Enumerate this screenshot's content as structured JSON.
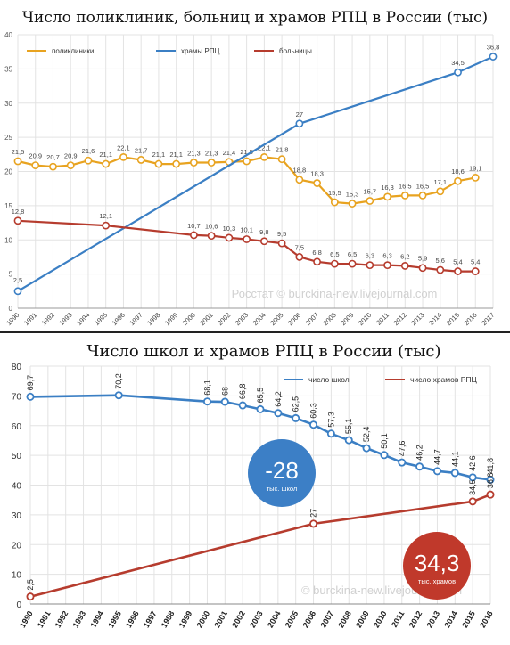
{
  "colors": {
    "clinics": "#e8a320",
    "churches": "#3b7fc4",
    "hospitals": "#b63c2e",
    "schools": "#3b7fc4",
    "churches2": "#b63c2e",
    "grid": "#e3e3e3"
  },
  "chart_data": [
    {
      "type": "line",
      "title": "Число поликлиник, больниц и храмов РПЦ в России (тыс)",
      "watermark": "Росстат © burckina-new.livejournal.com",
      "ylim": [
        0,
        40
      ],
      "yticks": [
        0,
        5,
        10,
        15,
        20,
        25,
        30,
        35,
        40
      ],
      "xlim": [
        1990,
        2017
      ],
      "xticks": [
        1990,
        1991,
        1992,
        1993,
        1994,
        1995,
        1996,
        1997,
        1998,
        1999,
        2000,
        2001,
        2002,
        2003,
        2004,
        2005,
        2006,
        2007,
        2008,
        2009,
        2010,
        2011,
        2012,
        2013,
        2014,
        2015,
        2016,
        2017
      ],
      "grid": true,
      "legend": "top",
      "series": [
        {
          "name": "поликлиники",
          "key": "clinics",
          "x": [
            1990,
            1991,
            1992,
            1993,
            1994,
            1995,
            1996,
            1997,
            1998,
            1999,
            2000,
            2001,
            2002,
            2003,
            2004,
            2005,
            2006,
            2007,
            2008,
            2009,
            2010,
            2011,
            2012,
            2013,
            2014,
            2015,
            2016
          ],
          "y": [
            21.5,
            20.9,
            20.7,
            20.9,
            21.6,
            21.1,
            22.1,
            21.7,
            21.1,
            21.1,
            21.3,
            21.3,
            21.4,
            21.5,
            22.1,
            21.8,
            18.8,
            18.3,
            15.5,
            15.3,
            15.7,
            16.3,
            16.5,
            16.5,
            17.1,
            18.6,
            19.1
          ],
          "labels": [
            "21,5",
            "20,9",
            "20,7",
            "20,9",
            "21,6",
            "21,1",
            "22,1",
            "21,7",
            "21,1",
            "21,1",
            "21,3",
            "21,3",
            "21,4",
            "21,5",
            "22,1",
            "21,8",
            "18,8",
            "18,3",
            "15,5",
            "15,3",
            "15,7",
            "16,3",
            "16,5",
            "16,5",
            "17,1",
            "18,6",
            "19,1"
          ]
        },
        {
          "name": "храмы РПЦ",
          "key": "churches",
          "x": [
            1990,
            2006,
            2015,
            2017
          ],
          "y": [
            2.5,
            27,
            34.5,
            36.8
          ],
          "labels": [
            "2,5",
            "27",
            "34,5",
            "36,8"
          ]
        },
        {
          "name": "больницы",
          "key": "hospitals",
          "x": [
            1990,
            1995,
            2000,
            2001,
            2002,
            2003,
            2004,
            2005,
            2006,
            2007,
            2008,
            2009,
            2010,
            2011,
            2012,
            2013,
            2014,
            2015,
            2016
          ],
          "y": [
            12.8,
            12.1,
            10.7,
            10.6,
            10.3,
            10.1,
            9.8,
            9.5,
            7.5,
            6.8,
            6.5,
            6.5,
            6.3,
            6.3,
            6.2,
            5.9,
            5.6,
            5.4,
            5.4
          ],
          "labels": [
            "12,8",
            "12,1",
            "10,7",
            "10,6",
            "10,3",
            "10,1",
            "9,8",
            "9,5",
            "7,5",
            "6,8",
            "6,5",
            "6,5",
            "6,3",
            "6,3",
            "6,2",
            "5,9",
            "5,6",
            "5,4",
            "5,4"
          ]
        }
      ]
    },
    {
      "type": "line",
      "title": "Число школ и храмов РПЦ в России (тыс)",
      "watermark": "© burckina-new.livejournal.com",
      "ylim": [
        0,
        80
      ],
      "yticks": [
        0,
        10,
        20,
        30,
        40,
        50,
        60,
        70,
        80
      ],
      "xlim": [
        1990,
        2016
      ],
      "xticks": [
        1990,
        1991,
        1992,
        1993,
        1994,
        1995,
        1996,
        1997,
        1998,
        1999,
        2000,
        2001,
        2002,
        2003,
        2004,
        2005,
        2006,
        2007,
        2008,
        2009,
        2010,
        2011,
        2012,
        2013,
        2014,
        2015,
        2016
      ],
      "grid": true,
      "legend": "top-right",
      "series": [
        {
          "name": "число школ",
          "key": "schools",
          "x": [
            1990,
            1995,
            2000,
            2001,
            2002,
            2003,
            2004,
            2005,
            2006,
            2007,
            2008,
            2009,
            2010,
            2011,
            2012,
            2013,
            2014,
            2015,
            2016
          ],
          "y": [
            69.7,
            70.2,
            68.1,
            68,
            66.8,
            65.5,
            64.2,
            62.5,
            60.3,
            57.3,
            55.1,
            52.4,
            50.1,
            47.6,
            46.2,
            44.7,
            44.1,
            42.6,
            41.8
          ],
          "labels": [
            "69,7",
            "70,2",
            "68,1",
            "68",
            "66,8",
            "65,5",
            "64,2",
            "62,5",
            "60,3",
            "57,3",
            "55,1",
            "52,4",
            "50,1",
            "47,6",
            "46,2",
            "44,7",
            "44,1",
            "42,6",
            "41,8"
          ]
        },
        {
          "name": "число храмов РПЦ",
          "key": "churches2",
          "x": [
            1990,
            2006,
            2015,
            2016
          ],
          "y": [
            2.5,
            27,
            34.5,
            36.8
          ],
          "labels": [
            "2,5",
            "27",
            "34,5",
            "36,8"
          ]
        }
      ],
      "annotations": [
        {
          "big": "-28",
          "small": "тыс. школ",
          "color": "#3c7fc6"
        },
        {
          "big": "34,3",
          "small": "тыс. храмов",
          "color": "#c0392b"
        }
      ]
    }
  ]
}
